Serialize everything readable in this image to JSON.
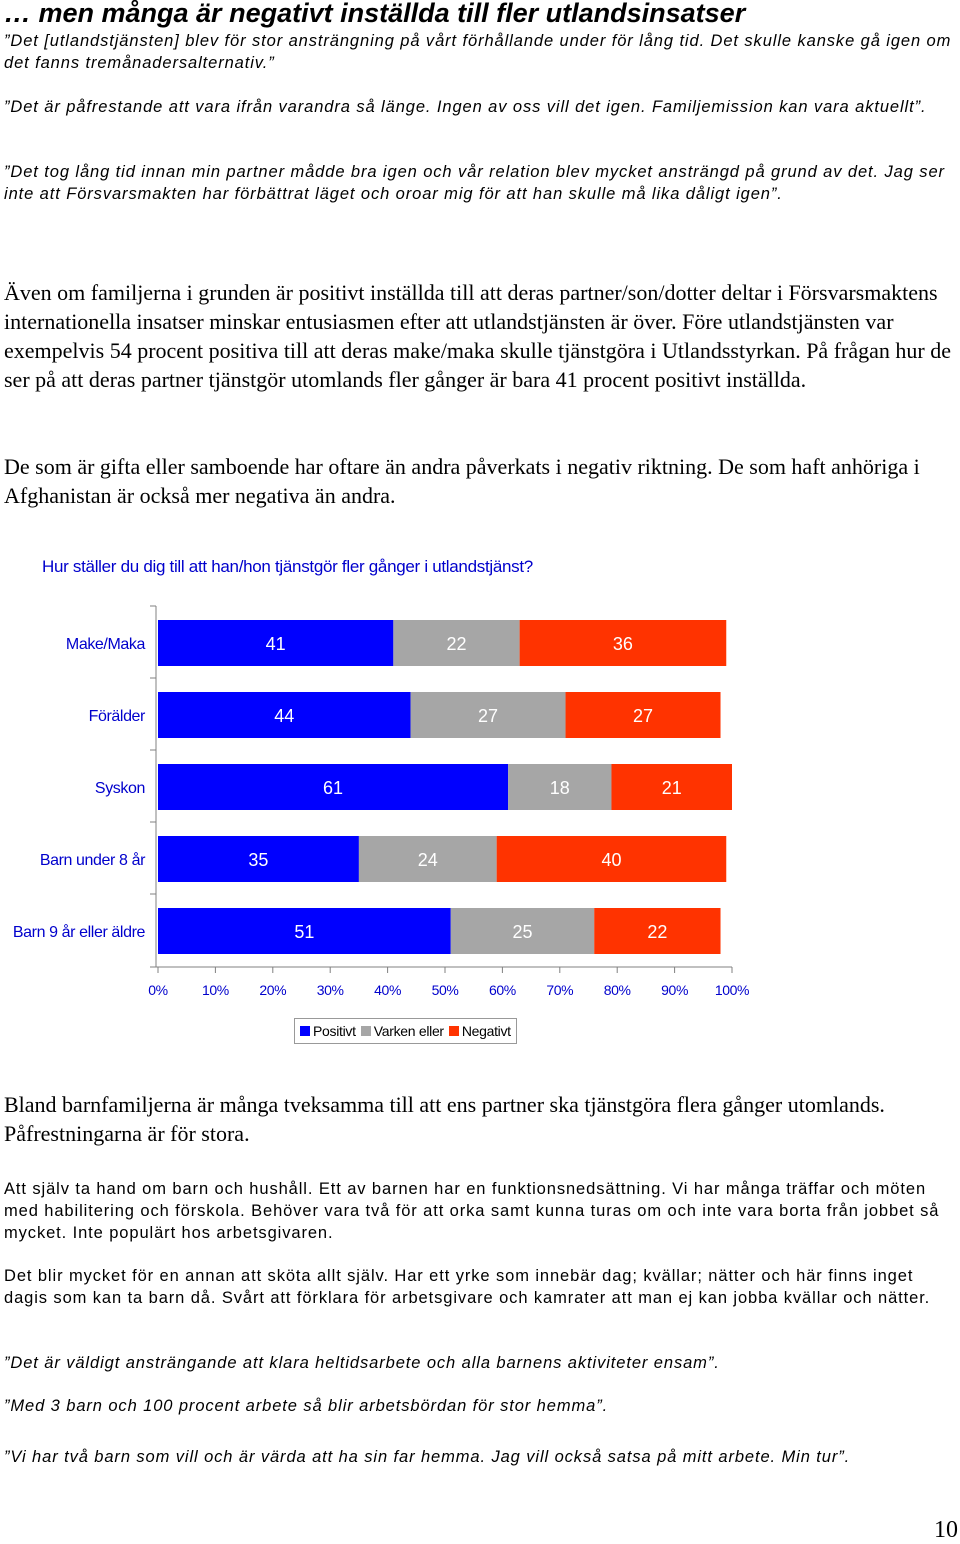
{
  "heading": "… men många är negativt inställda till fler utlandsinsatser",
  "quotes_top": [
    "”Det [utlandstjänsten] blev för stor ansträngning på vårt förhållande under för lång tid. Det skulle kanske gå igen om det fanns tremånadersalternativ.”",
    "”Det är påfrestande att vara ifrån varandra så länge. Ingen av oss vill det igen. Familjemission kan vara aktuellt”.",
    "”Det tog lång tid innan min partner mådde bra igen och vår relation blev mycket ansträngd på grund av det. Jag ser inte att Försvarsmakten har förbättrat läget och oroar mig för att han skulle må lika dåligt igen”."
  ],
  "paragraphs": [
    "Även om familjerna i grunden är positivt inställda till att deras partner/son/dotter deltar i Försvarsmaktens internationella insatser minskar entusiasmen efter att utlandstjänsten är över. Före utlandstjänsten var exempelvis 54 procent positiva till att deras make/maka skulle tjänstgöra i Utlandsstyrkan. På frågan hur de ser på att deras partner tjänstgör utomlands fler gånger är bara 41 procent positivt inställda.",
    "De som är gifta eller samboende har oftare än andra påverkats i negativ riktning. De som haft anhöriga i Afghanistan är också mer negativa än andra."
  ],
  "chart_title": "Hur ställer du dig till att han/hon tjänstgör fler gånger i utlandstjänst?",
  "chart_data": {
    "type": "bar",
    "orientation": "horizontal",
    "stacked": true,
    "categories": [
      "Make/Maka",
      "Förälder",
      "Syskon",
      "Barn under 8 år",
      "Barn 9 år eller äldre"
    ],
    "series": [
      {
        "name": "Positivt",
        "color": "#0000ff",
        "values": [
          41,
          44,
          61,
          35,
          51
        ]
      },
      {
        "name": "Varken eller",
        "color": "#a6a6a6",
        "values": [
          22,
          27,
          18,
          24,
          25
        ]
      },
      {
        "name": "Negativt",
        "color": "#ff3300",
        "values": [
          36,
          27,
          21,
          40,
          22
        ]
      }
    ],
    "x_ticks": [
      "0%",
      "10%",
      "20%",
      "30%",
      "40%",
      "50%",
      "60%",
      "70%",
      "80%",
      "90%",
      "100%"
    ],
    "xlim": [
      0,
      100
    ],
    "legend_position": "bottom",
    "grid": false
  },
  "paragraph_after_chart": "Bland barnfamiljerna är många tveksamma till att ens partner ska tjänstgöra flera gånger utomlands. Påfrestningarna är för stora.",
  "quotes_bottom": [
    "Att själv ta hand om barn och hushåll. Ett av barnen har en funktionsnedsättning. Vi har många träffar och möten med habilitering och förskola. Behöver vara två för att orka samt kunna turas om och inte vara borta från jobbet så mycket. Inte populärt hos arbetsgivaren.",
    "Det blir mycket för en annan att sköta allt själv. Har ett yrke som innebär dag; kvällar; nätter och här finns inget dagis som kan ta barn då. Svårt att förklara för arbetsgivare och kamrater att man ej kan jobba kvällar och nätter.",
    "”Det är väldigt ansträngande att klara heltidsarbete och alla barnens aktiviteter ensam”.",
    "”Med 3 barn och 100 procent arbete så blir arbetsbördan för stor hemma”.",
    "”Vi har två barn som vill och är värda att ha sin far hemma. Jag vill också satsa på mitt arbete. Min tur”."
  ],
  "page_number": "10"
}
